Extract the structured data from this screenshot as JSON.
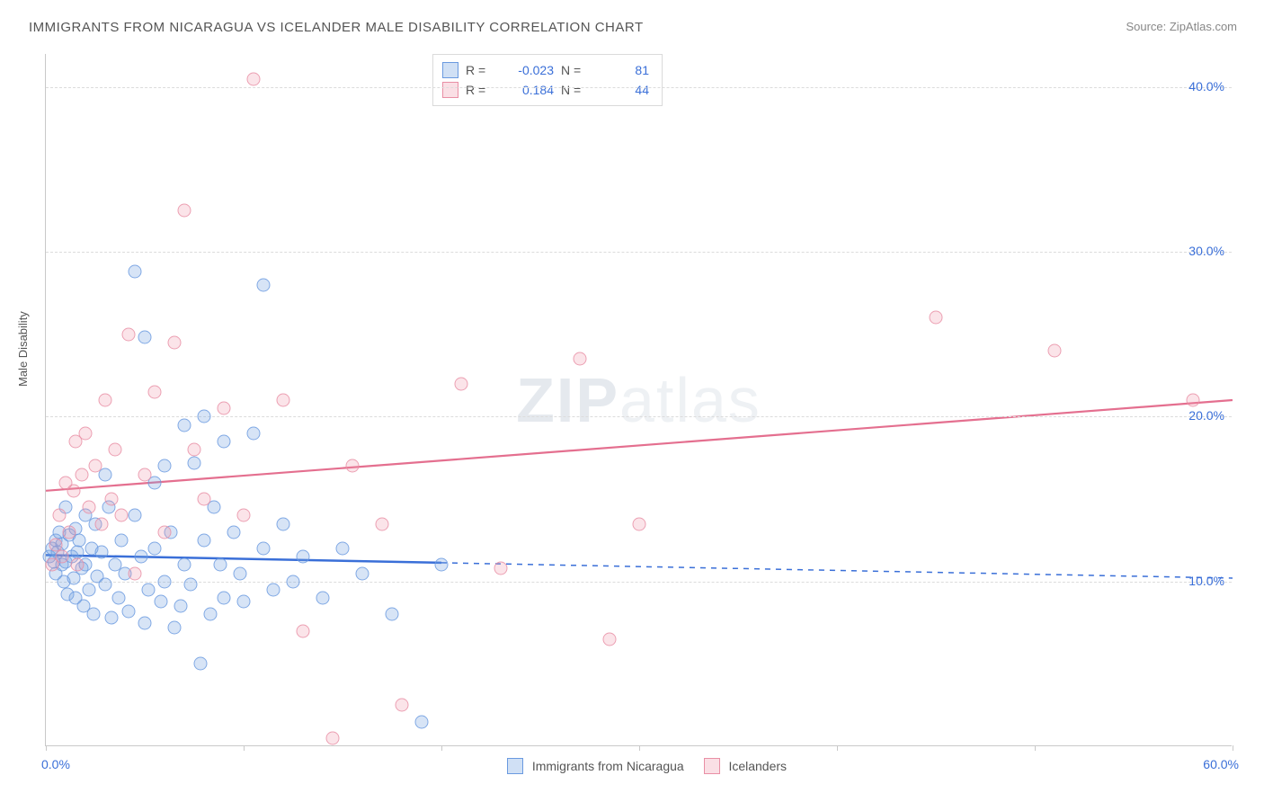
{
  "title": "IMMIGRANTS FROM NICARAGUA VS ICELANDER MALE DISABILITY CORRELATION CHART",
  "source": "Source: ZipAtlas.com",
  "ylabel": "Male Disability",
  "watermark": {
    "bold": "ZIP",
    "thin": "atlas"
  },
  "chart": {
    "type": "scatter",
    "xlim": [
      0,
      60
    ],
    "ylim": [
      0,
      42
    ],
    "xticks": [
      0,
      10,
      20,
      30,
      40,
      50,
      60
    ],
    "ygrid": [
      10,
      20,
      30,
      40
    ],
    "ytick_labels": [
      "10.0%",
      "20.0%",
      "30.0%",
      "40.0%"
    ],
    "xlabel_min": "0.0%",
    "xlabel_max": "60.0%",
    "background_color": "#ffffff",
    "grid_color": "#dcdcdc",
    "axis_color": "#c9c9c9",
    "tick_label_color": "#3a6fd8",
    "title_fontsize": 15,
    "label_fontsize": 13,
    "tick_fontsize": 14,
    "marker_size": 15,
    "series": [
      {
        "key": "a",
        "name": "Immigrants from Nicaragua",
        "color_fill": "rgba(120,165,225,0.35)",
        "color_stroke": "#6a9ae0",
        "R": "-0.023",
        "N": "81",
        "trend": {
          "y_at_x0": 11.6,
          "y_at_x60": 10.2,
          "solid_until_x": 20,
          "stroke": "#3a6fd8",
          "width": 2.5
        },
        "points": [
          [
            0.2,
            11.5
          ],
          [
            0.3,
            12.0
          ],
          [
            0.4,
            11.2
          ],
          [
            0.5,
            10.5
          ],
          [
            0.5,
            12.5
          ],
          [
            0.6,
            11.8
          ],
          [
            0.7,
            13.0
          ],
          [
            0.8,
            11.0
          ],
          [
            0.8,
            12.3
          ],
          [
            0.9,
            10.0
          ],
          [
            1.0,
            14.5
          ],
          [
            1.0,
            11.2
          ],
          [
            1.1,
            9.2
          ],
          [
            1.2,
            12.8
          ],
          [
            1.3,
            11.5
          ],
          [
            1.4,
            10.2
          ],
          [
            1.5,
            13.2
          ],
          [
            1.5,
            9.0
          ],
          [
            1.6,
            11.8
          ],
          [
            1.7,
            12.5
          ],
          [
            1.8,
            10.8
          ],
          [
            1.9,
            8.5
          ],
          [
            2.0,
            14.0
          ],
          [
            2.0,
            11.0
          ],
          [
            2.2,
            9.5
          ],
          [
            2.3,
            12.0
          ],
          [
            2.4,
            8.0
          ],
          [
            2.5,
            13.5
          ],
          [
            2.6,
            10.3
          ],
          [
            2.8,
            11.8
          ],
          [
            3.0,
            16.5
          ],
          [
            3.0,
            9.8
          ],
          [
            3.2,
            14.5
          ],
          [
            3.3,
            7.8
          ],
          [
            3.5,
            11.0
          ],
          [
            3.7,
            9.0
          ],
          [
            3.8,
            12.5
          ],
          [
            4.0,
            10.5
          ],
          [
            4.2,
            8.2
          ],
          [
            4.5,
            14.0
          ],
          [
            4.5,
            28.8
          ],
          [
            4.8,
            11.5
          ],
          [
            5.0,
            7.5
          ],
          [
            5.0,
            24.8
          ],
          [
            5.2,
            9.5
          ],
          [
            5.5,
            16.0
          ],
          [
            5.5,
            12.0
          ],
          [
            5.8,
            8.8
          ],
          [
            6.0,
            10.0
          ],
          [
            6.0,
            17.0
          ],
          [
            6.3,
            13.0
          ],
          [
            6.5,
            7.2
          ],
          [
            6.8,
            8.5
          ],
          [
            7.0,
            19.5
          ],
          [
            7.0,
            11.0
          ],
          [
            7.3,
            9.8
          ],
          [
            7.5,
            17.2
          ],
          [
            7.8,
            5.0
          ],
          [
            8.0,
            12.5
          ],
          [
            8.0,
            20.0
          ],
          [
            8.3,
            8.0
          ],
          [
            8.5,
            14.5
          ],
          [
            8.8,
            11.0
          ],
          [
            9.0,
            9.0
          ],
          [
            9.0,
            18.5
          ],
          [
            9.5,
            13.0
          ],
          [
            9.8,
            10.5
          ],
          [
            10.0,
            8.8
          ],
          [
            10.5,
            19.0
          ],
          [
            11.0,
            12.0
          ],
          [
            11.0,
            28.0
          ],
          [
            11.5,
            9.5
          ],
          [
            12.0,
            13.5
          ],
          [
            12.5,
            10.0
          ],
          [
            13.0,
            11.5
          ],
          [
            14.0,
            9.0
          ],
          [
            15.0,
            12.0
          ],
          [
            16.0,
            10.5
          ],
          [
            17.5,
            8.0
          ],
          [
            19.0,
            1.5
          ],
          [
            20.0,
            11.0
          ]
        ]
      },
      {
        "key": "b",
        "name": "Icelanders",
        "color_fill": "rgba(240,150,170,0.30)",
        "color_stroke": "#e98fa5",
        "R": "0.184",
        "N": "44",
        "trend": {
          "y_at_x0": 15.5,
          "y_at_x60": 21.0,
          "solid_until_x": 60,
          "stroke": "#e46f8f",
          "width": 2.2
        },
        "points": [
          [
            0.3,
            11.0
          ],
          [
            0.5,
            12.2
          ],
          [
            0.7,
            14.0
          ],
          [
            0.8,
            11.5
          ],
          [
            1.0,
            16.0
          ],
          [
            1.2,
            13.0
          ],
          [
            1.4,
            15.5
          ],
          [
            1.5,
            18.5
          ],
          [
            1.6,
            11.0
          ],
          [
            1.8,
            16.5
          ],
          [
            2.0,
            19.0
          ],
          [
            2.2,
            14.5
          ],
          [
            2.5,
            17.0
          ],
          [
            2.8,
            13.5
          ],
          [
            3.0,
            21.0
          ],
          [
            3.3,
            15.0
          ],
          [
            3.5,
            18.0
          ],
          [
            3.8,
            14.0
          ],
          [
            4.2,
            25.0
          ],
          [
            4.5,
            10.5
          ],
          [
            5.0,
            16.5
          ],
          [
            5.5,
            21.5
          ],
          [
            6.0,
            13.0
          ],
          [
            6.5,
            24.5
          ],
          [
            7.0,
            32.5
          ],
          [
            7.5,
            18.0
          ],
          [
            8.0,
            15.0
          ],
          [
            9.0,
            20.5
          ],
          [
            10.0,
            14.0
          ],
          [
            10.5,
            40.5
          ],
          [
            12.0,
            21.0
          ],
          [
            13.0,
            7.0
          ],
          [
            14.5,
            0.5
          ],
          [
            15.5,
            17.0
          ],
          [
            17.0,
            13.5
          ],
          [
            18.0,
            2.5
          ],
          [
            21.0,
            22.0
          ],
          [
            23.0,
            10.8
          ],
          [
            27.0,
            23.5
          ],
          [
            28.5,
            6.5
          ],
          [
            30.0,
            13.5
          ],
          [
            45.0,
            26.0
          ],
          [
            51.0,
            24.0
          ],
          [
            58.0,
            21.0
          ]
        ]
      }
    ]
  },
  "legend_bottom": {
    "a": "Immigrants from Nicaragua",
    "b": "Icelanders"
  }
}
